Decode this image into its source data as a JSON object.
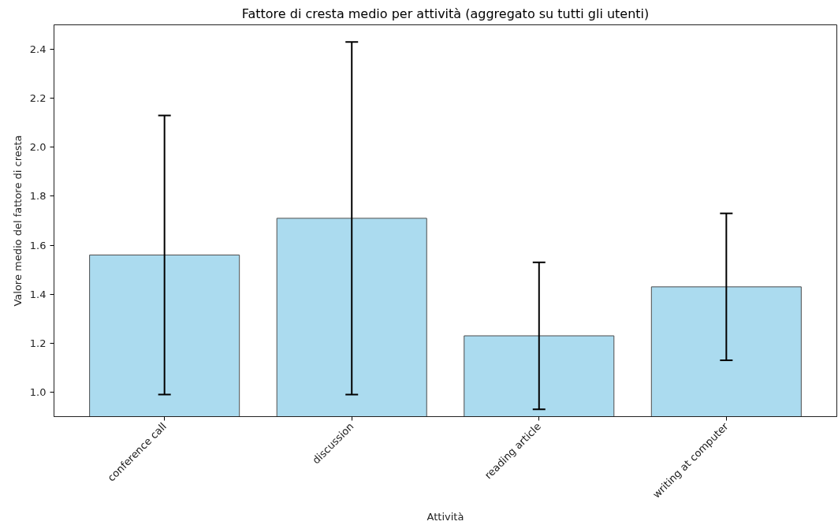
{
  "chart_data": {
    "type": "bar",
    "title": "Fattore di cresta medio per attività (aggregato su tutti gli utenti)",
    "xlabel": "Attività",
    "ylabel": "Valore medio del fattore di cresta",
    "categories": [
      "conference call",
      "discussion",
      "reading article",
      "writing at computer"
    ],
    "values": [
      1.56,
      1.71,
      1.23,
      1.43
    ],
    "errors": [
      0.57,
      0.72,
      0.3,
      0.3
    ],
    "color": "#abdbef",
    "ylim": [
      0.9,
      2.5
    ],
    "yticks": [
      {
        "value": 1,
        "label": "1.0"
      },
      1.2,
      1.4,
      1.6,
      1.8,
      {
        "value": 2,
        "label": "2.0"
      },
      2.2,
      2.4
    ]
  }
}
